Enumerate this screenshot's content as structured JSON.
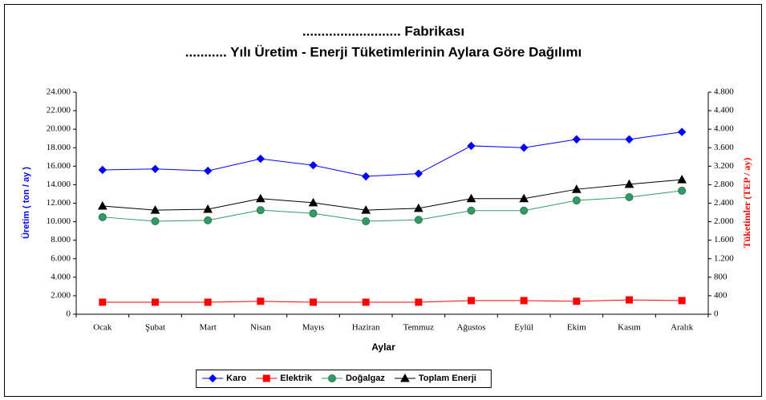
{
  "chart_data": {
    "type": "line",
    "title": [
      ".......................... Fabrikası",
      "........... Yılı Üretim - Enerji Tüketimlerinin Aylara Göre Dağılımı"
    ],
    "xlabel": "Aylar",
    "ylabel": "Üretim  ( ton / ay )",
    "y2label": "Tüketimler (TEP / ay)",
    "categories": [
      "Ocak",
      "Şubat",
      "Mart",
      "Nisan",
      "Mayıs",
      "Haziran",
      "Temmuz",
      "Ağustos",
      "Eylül",
      "Ekim",
      "Kasım",
      "Aralık"
    ],
    "ylim": [
      0,
      24000
    ],
    "yticks": [
      0,
      {
        "value": 2000,
        "label": "2.000"
      },
      {
        "value": 4000,
        "label": "4.000"
      },
      {
        "value": 6000,
        "label": "6.000"
      },
      {
        "value": 8000,
        "label": "8.000"
      },
      {
        "value": 10000,
        "label": "10.000"
      },
      {
        "value": 12000,
        "label": "12.000"
      },
      {
        "value": 14000,
        "label": "14.000"
      },
      {
        "value": 16000,
        "label": "16.000"
      },
      {
        "value": 18000,
        "label": "18.000"
      },
      {
        "value": 20000,
        "label": "20.000"
      },
      {
        "value": 22000,
        "label": "22.000"
      },
      {
        "value": 24000,
        "label": "24.000"
      }
    ],
    "y2lim": [
      0,
      4800
    ],
    "y2ticks": [
      0,
      400,
      800,
      {
        "value": 1200,
        "label": "1.200"
      },
      {
        "value": 1600,
        "label": "1.600"
      },
      {
        "value": 2000,
        "label": "2.000"
      },
      {
        "value": 2400,
        "label": "2.400"
      },
      {
        "value": 2800,
        "label": "2.800"
      },
      {
        "value": 3200,
        "label": "3.200"
      },
      {
        "value": 3600,
        "label": "3.600"
      },
      {
        "value": 4000,
        "label": "4.000"
      },
      {
        "value": 4400,
        "label": "4.400"
      },
      {
        "value": 4800,
        "label": "4.800"
      }
    ],
    "grid": false,
    "legend": "bottom",
    "series": [
      {
        "name": "Karo",
        "color": "#0000ff",
        "marker": "diamond",
        "axis": "y",
        "values": [
          15600,
          15700,
          15500,
          16800,
          16100,
          14900,
          15200,
          18200,
          18000,
          18900,
          18900,
          19700
        ]
      },
      {
        "name": "Elektrik",
        "color": "#ff0000",
        "marker": "square",
        "axis": "y2",
        "values": [
          260,
          260,
          260,
          280,
          260,
          260,
          260,
          295,
          295,
          280,
          310,
          295
        ]
      },
      {
        "name": "Doğalgaz",
        "color": "#339966",
        "marker": "circle",
        "axis": "y2",
        "values": [
          2100,
          2010,
          2030,
          2250,
          2180,
          2010,
          2040,
          2240,
          2240,
          2460,
          2530,
          2670
        ]
      },
      {
        "name": "Toplam Enerji",
        "color": "#000000",
        "marker": "triangle",
        "axis": "y2",
        "values": [
          2340,
          2250,
          2270,
          2500,
          2410,
          2250,
          2290,
          2500,
          2500,
          2700,
          2810,
          2910
        ]
      }
    ]
  }
}
